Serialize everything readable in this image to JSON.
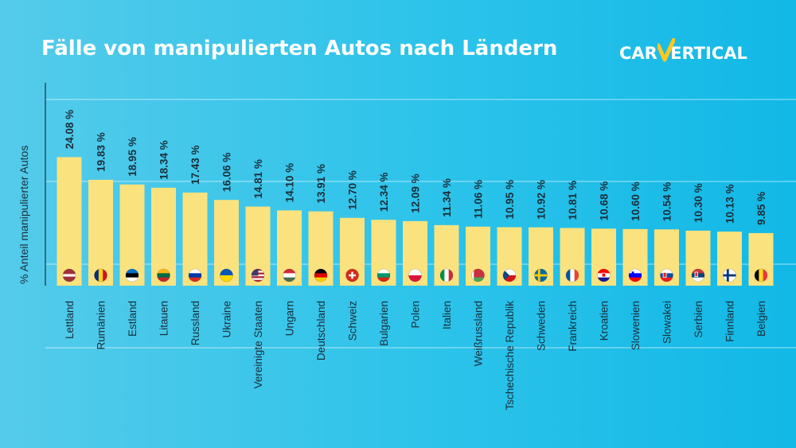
{
  "header": {
    "title": "Fälle von manipulierten Autos nach Ländern",
    "logo_text_left": "CAR",
    "logo_text_right": "ERTICAL"
  },
  "colors": {
    "bar": "#fae27e",
    "logo_accent": "#ffc81e",
    "text_dark": "#1a2f3a",
    "grid": "rgba(255,255,255,0.6)"
  },
  "chart_data": {
    "type": "bar",
    "title": "Fälle von manipulierten Autos nach Ländern",
    "xlabel": "",
    "ylabel": "% Anteil manipulierter Autos",
    "ylim": [
      0,
      38
    ],
    "grid": true,
    "categories": [
      "Lettland",
      "Rumänien",
      "Estland",
      "Litauen",
      "Russland",
      "Ukraine",
      "Vereinigte Staaten",
      "Ungarn",
      "Deutschland",
      "Schweiz",
      "Bulgarien",
      "Polen",
      "Italien",
      "Weißrussland",
      "Tschechische Republik",
      "Schweden",
      "Frankreich",
      "Kroatien",
      "Slowenien",
      "Slowakei",
      "Serbien",
      "Finnland",
      "Belgien"
    ],
    "values": [
      24.08,
      19.83,
      18.95,
      18.34,
      17.43,
      16.06,
      14.81,
      14.1,
      13.91,
      12.7,
      12.34,
      12.09,
      11.34,
      11.06,
      10.95,
      10.92,
      10.81,
      10.68,
      10.6,
      10.54,
      10.3,
      10.13,
      9.85
    ],
    "value_labels": [
      "24.08 %",
      "19.83 %",
      "18.95 %",
      "18.34 %",
      "17.43 %",
      "16.06 %",
      "14.81 %",
      "14.10 %",
      "13.91 %",
      "12.70 %",
      "12.34 %",
      "12.09 %",
      "11.34 %",
      "11.06 %",
      "10.95 %",
      "10.92 %",
      "10.81 %",
      "10.68 %",
      "10.60 %",
      "10.54 %",
      "10.30 %",
      "10.13 %",
      "9.85 %"
    ],
    "flags": [
      "lv-flag-icon",
      "ro-flag-icon",
      "ee-flag-icon",
      "lt-flag-icon",
      "ru-flag-icon",
      "ua-flag-icon",
      "us-flag-icon",
      "hu-flag-icon",
      "de-flag-icon",
      "ch-flag-icon",
      "bg-flag-icon",
      "pl-flag-icon",
      "it-flag-icon",
      "by-flag-icon",
      "cz-flag-icon",
      "se-flag-icon",
      "fr-flag-icon",
      "hr-flag-icon",
      "si-flag-icon",
      "sk-flag-icon",
      "rs-flag-icon",
      "fi-flag-icon",
      "be-flag-icon"
    ]
  }
}
